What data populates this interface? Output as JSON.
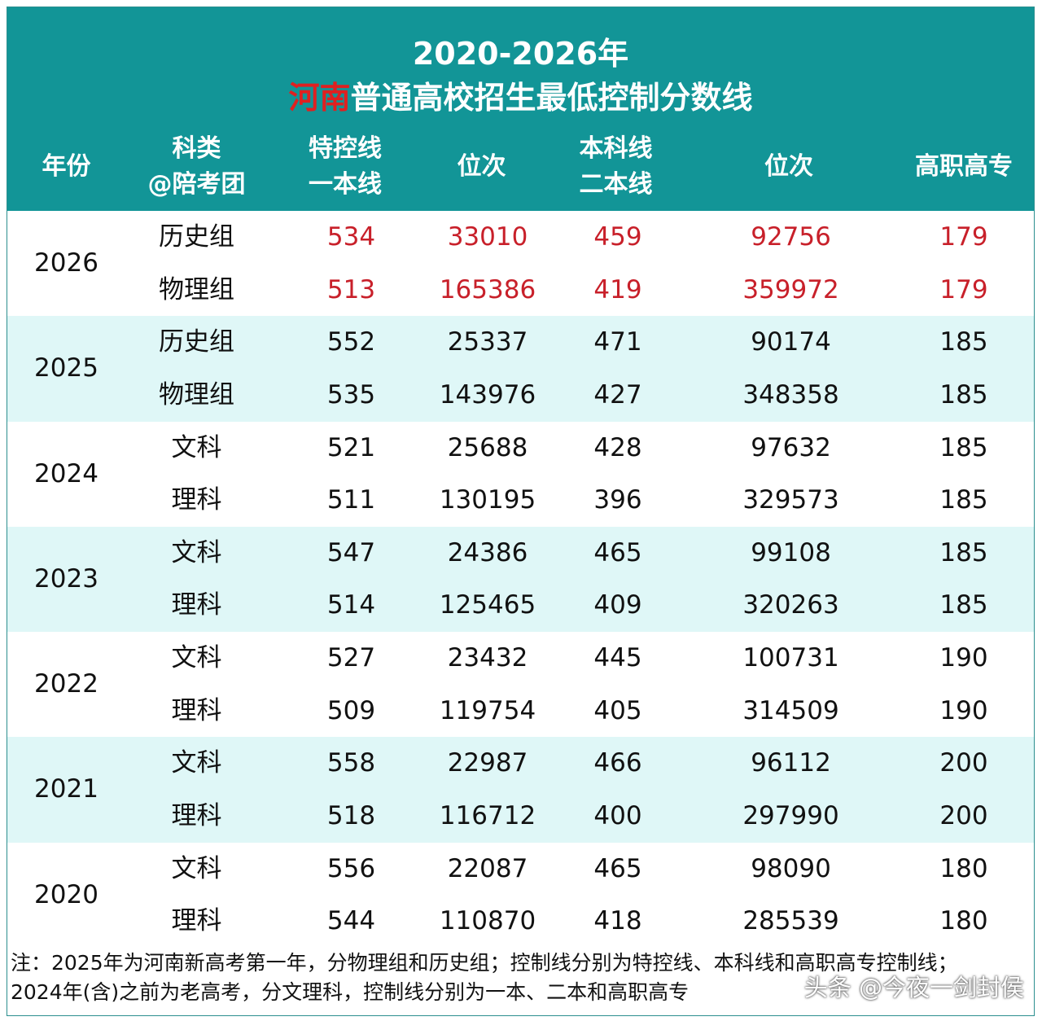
{
  "title": {
    "line1": "2020-2026年",
    "line2_highlight": "河南",
    "line2_rest": "普通高校招生最低控制分数线"
  },
  "headers": {
    "year": "年份",
    "category_1": "科类",
    "category_2": "@陪考团",
    "tekong_1": "特控线",
    "tekong_2": "一本线",
    "rank_1": "位次",
    "benke_1": "本科线",
    "benke_2": "二本线",
    "rank_2": "位次",
    "gaozhi": "高职高专"
  },
  "rows": [
    {
      "year": "2026",
      "r1": {
        "cat": "历史组",
        "tekong": "534",
        "rank1": "33010",
        "benke": "459",
        "rank2": "92756",
        "gaozhi": "179"
      },
      "r2": {
        "cat": "物理组",
        "tekong": "513",
        "rank1": "165386",
        "benke": "419",
        "rank2": "359972",
        "gaozhi": "179"
      }
    },
    {
      "year": "2025",
      "r1": {
        "cat": "历史组",
        "tekong": "552",
        "rank1": "25337",
        "benke": "471",
        "rank2": "90174",
        "gaozhi": "185"
      },
      "r2": {
        "cat": "物理组",
        "tekong": "535",
        "rank1": "143976",
        "benke": "427",
        "rank2": "348358",
        "gaozhi": "185"
      }
    },
    {
      "year": "2024",
      "r1": {
        "cat": "文科",
        "tekong": "521",
        "rank1": "25688",
        "benke": "428",
        "rank2": "97632",
        "gaozhi": "185"
      },
      "r2": {
        "cat": "理科",
        "tekong": "511",
        "rank1": "130195",
        "benke": "396",
        "rank2": "329573",
        "gaozhi": "185"
      }
    },
    {
      "year": "2023",
      "r1": {
        "cat": "文科",
        "tekong": "547",
        "rank1": "24386",
        "benke": "465",
        "rank2": "99108",
        "gaozhi": "185"
      },
      "r2": {
        "cat": "理科",
        "tekong": "514",
        "rank1": "125465",
        "benke": "409",
        "rank2": "320263",
        "gaozhi": "185"
      }
    },
    {
      "year": "2022",
      "r1": {
        "cat": "文科",
        "tekong": "527",
        "rank1": "23432",
        "benke": "445",
        "rank2": "100731",
        "gaozhi": "190"
      },
      "r2": {
        "cat": "理科",
        "tekong": "509",
        "rank1": "119754",
        "benke": "405",
        "rank2": "314509",
        "gaozhi": "190"
      }
    },
    {
      "year": "2021",
      "r1": {
        "cat": "文科",
        "tekong": "558",
        "rank1": "22987",
        "benke": "466",
        "rank2": "96112",
        "gaozhi": "200"
      },
      "r2": {
        "cat": "理科",
        "tekong": "518",
        "rank1": "116712",
        "benke": "400",
        "rank2": "297990",
        "gaozhi": "200"
      }
    },
    {
      "year": "2020",
      "r1": {
        "cat": "文科",
        "tekong": "556",
        "rank1": "22087",
        "benke": "465",
        "rank2": "98090",
        "gaozhi": "180"
      },
      "r2": {
        "cat": "理科",
        "tekong": "544",
        "rank1": "110870",
        "benke": "418",
        "rank2": "285539",
        "gaozhi": "180"
      }
    }
  ],
  "note": {
    "line1": "注：2025年为河南新高考第一年，分物理组和历史组；控制线分别为特控线、本科线和高职高专控制线；",
    "line2": "2024年(含)之前为老高考，分文理科，控制线分别为一本、二本和高职高专"
  },
  "watermark": "头条 @今夜一剑封侯",
  "colors": {
    "header_bg": "#129597",
    "alt_row_bg": "#dff7f7",
    "highlight_red": "#e02020",
    "value_red": "#c8202a"
  }
}
